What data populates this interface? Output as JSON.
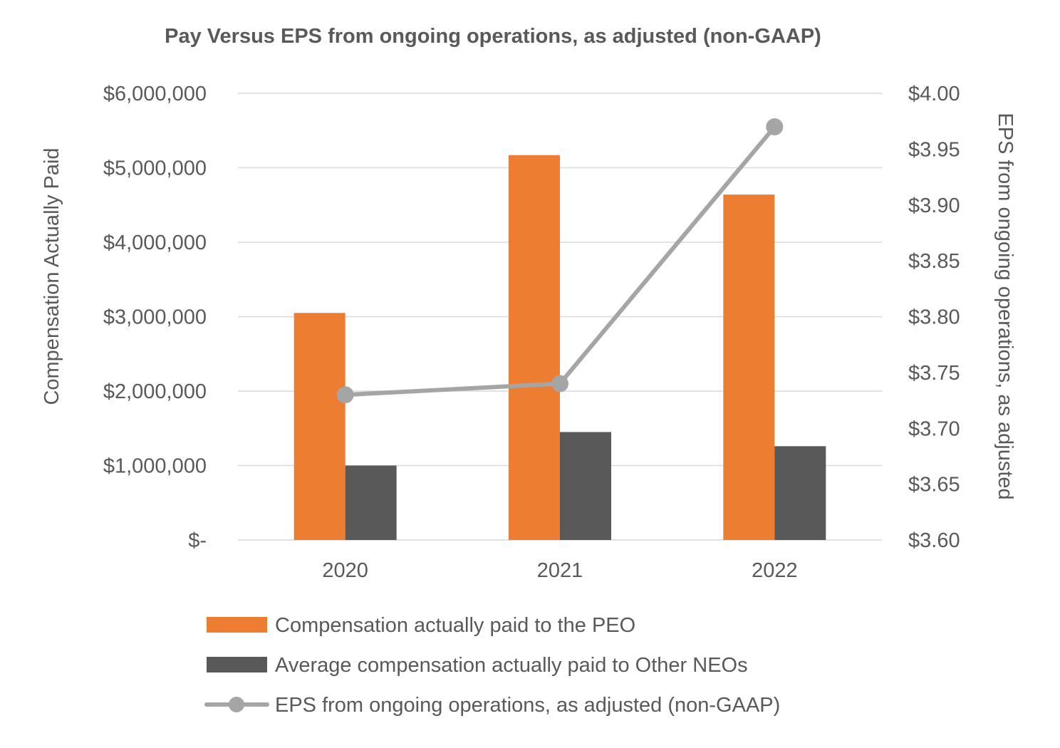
{
  "chart_data": {
    "type": "bar",
    "title": "Pay Versus EPS from ongoing operations, as adjusted (non-GAAP)",
    "categories": [
      "2020",
      "2021",
      "2022"
    ],
    "ylabel": "Compensation Actually Paid",
    "y2label": "EPS from ongoing operations, as adjusted",
    "ylim": [
      0,
      6000000
    ],
    "y2lim": [
      3.6,
      4.0
    ],
    "yticks": [
      0,
      1000000,
      2000000,
      3000000,
      4000000,
      5000000,
      6000000
    ],
    "ytick_labels": [
      "$-",
      "$1,000,000",
      "$2,000,000",
      "$3,000,000",
      "$4,000,000",
      "$5,000,000",
      "$6,000,000"
    ],
    "y2ticks": [
      3.6,
      3.65,
      3.7,
      3.75,
      3.8,
      3.85,
      3.9,
      3.95,
      4.0
    ],
    "y2tick_labels": [
      "$3.60",
      "$3.65",
      "$3.70",
      "$3.75",
      "$3.80",
      "$3.85",
      "$3.90",
      "$3.95",
      "$4.00"
    ],
    "grid": true,
    "legend_position": "bottom",
    "series": [
      {
        "name": "Compensation actually paid to the PEO",
        "kind": "bar",
        "axis": "left",
        "color": "#ED7D31",
        "values": [
          3050000,
          5170000,
          4640000
        ]
      },
      {
        "name": "Average compensation actually paid to Other NEOs",
        "kind": "bar",
        "axis": "left",
        "color": "#595959",
        "values": [
          1000000,
          1450000,
          1260000
        ]
      },
      {
        "name": "EPS from ongoing operations, as adjusted (non-GAAP)",
        "kind": "line",
        "axis": "right",
        "color": "#A5A5A5",
        "values": [
          3.73,
          3.74,
          3.97
        ]
      }
    ]
  }
}
